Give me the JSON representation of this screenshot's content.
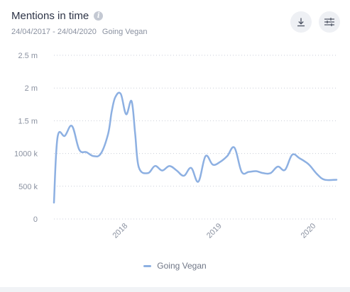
{
  "header": {
    "title": "Mentions in time",
    "date_range": "24/04/2017 - 24/04/2020",
    "project": "Going Vegan"
  },
  "toolbar": {
    "download_icon": "download-icon",
    "settings_icon": "sliders-icon"
  },
  "colors": {
    "line": "#8db0e2",
    "grid": "#c9ced8",
    "text": "#8a91a0"
  },
  "chart_data": {
    "type": "line",
    "title": "Mentions in time",
    "xlabel": "",
    "ylabel": "",
    "ylim": [
      0,
      2500000
    ],
    "xlim": [
      "2017-04-24",
      "2020-04-24"
    ],
    "y_ticks": [
      0,
      500000,
      1000000,
      1500000,
      2000000,
      2500000
    ],
    "y_tick_labels": [
      "0",
      "500 k",
      "1000 k",
      "1.5 m",
      "2 m",
      "2.5 m"
    ],
    "x_ticks": [
      "2018-01-01",
      "2019-01-01",
      "2020-01-01"
    ],
    "x_tick_labels": [
      "2018",
      "2019",
      "2020"
    ],
    "grid": true,
    "legend_position": "bottom-center",
    "series": [
      {
        "name": "Going Vegan",
        "x": [
          "2017-04-24",
          "2017-05-08",
          "2017-06-05",
          "2017-07-03",
          "2017-07-31",
          "2017-08-28",
          "2017-09-25",
          "2017-10-23",
          "2017-11-20",
          "2017-12-04",
          "2017-12-18",
          "2018-01-08",
          "2018-01-29",
          "2018-02-19",
          "2018-03-05",
          "2018-03-19",
          "2018-04-23",
          "2018-05-21",
          "2018-06-18",
          "2018-07-16",
          "2018-08-13",
          "2018-09-10",
          "2018-10-08",
          "2018-11-05",
          "2018-12-03",
          "2018-12-31",
          "2019-01-28",
          "2019-02-25",
          "2019-03-25",
          "2019-04-22",
          "2019-05-20",
          "2019-06-17",
          "2019-07-15",
          "2019-08-12",
          "2019-09-09",
          "2019-10-07",
          "2019-11-04",
          "2019-12-02",
          "2019-12-30",
          "2020-01-13",
          "2020-02-10",
          "2020-03-09",
          "2020-04-24"
        ],
        "values": [
          250000,
          1250000,
          1270000,
          1420000,
          1060000,
          1020000,
          960000,
          1000000,
          1300000,
          1640000,
          1860000,
          1910000,
          1600000,
          1800000,
          1300000,
          790000,
          700000,
          810000,
          740000,
          810000,
          740000,
          660000,
          780000,
          570000,
          960000,
          830000,
          870000,
          960000,
          1090000,
          720000,
          720000,
          730000,
          700000,
          700000,
          800000,
          750000,
          980000,
          930000,
          860000,
          810000,
          680000,
          600000,
          600000
        ]
      }
    ]
  },
  "legend": {
    "label": "Going Vegan"
  }
}
